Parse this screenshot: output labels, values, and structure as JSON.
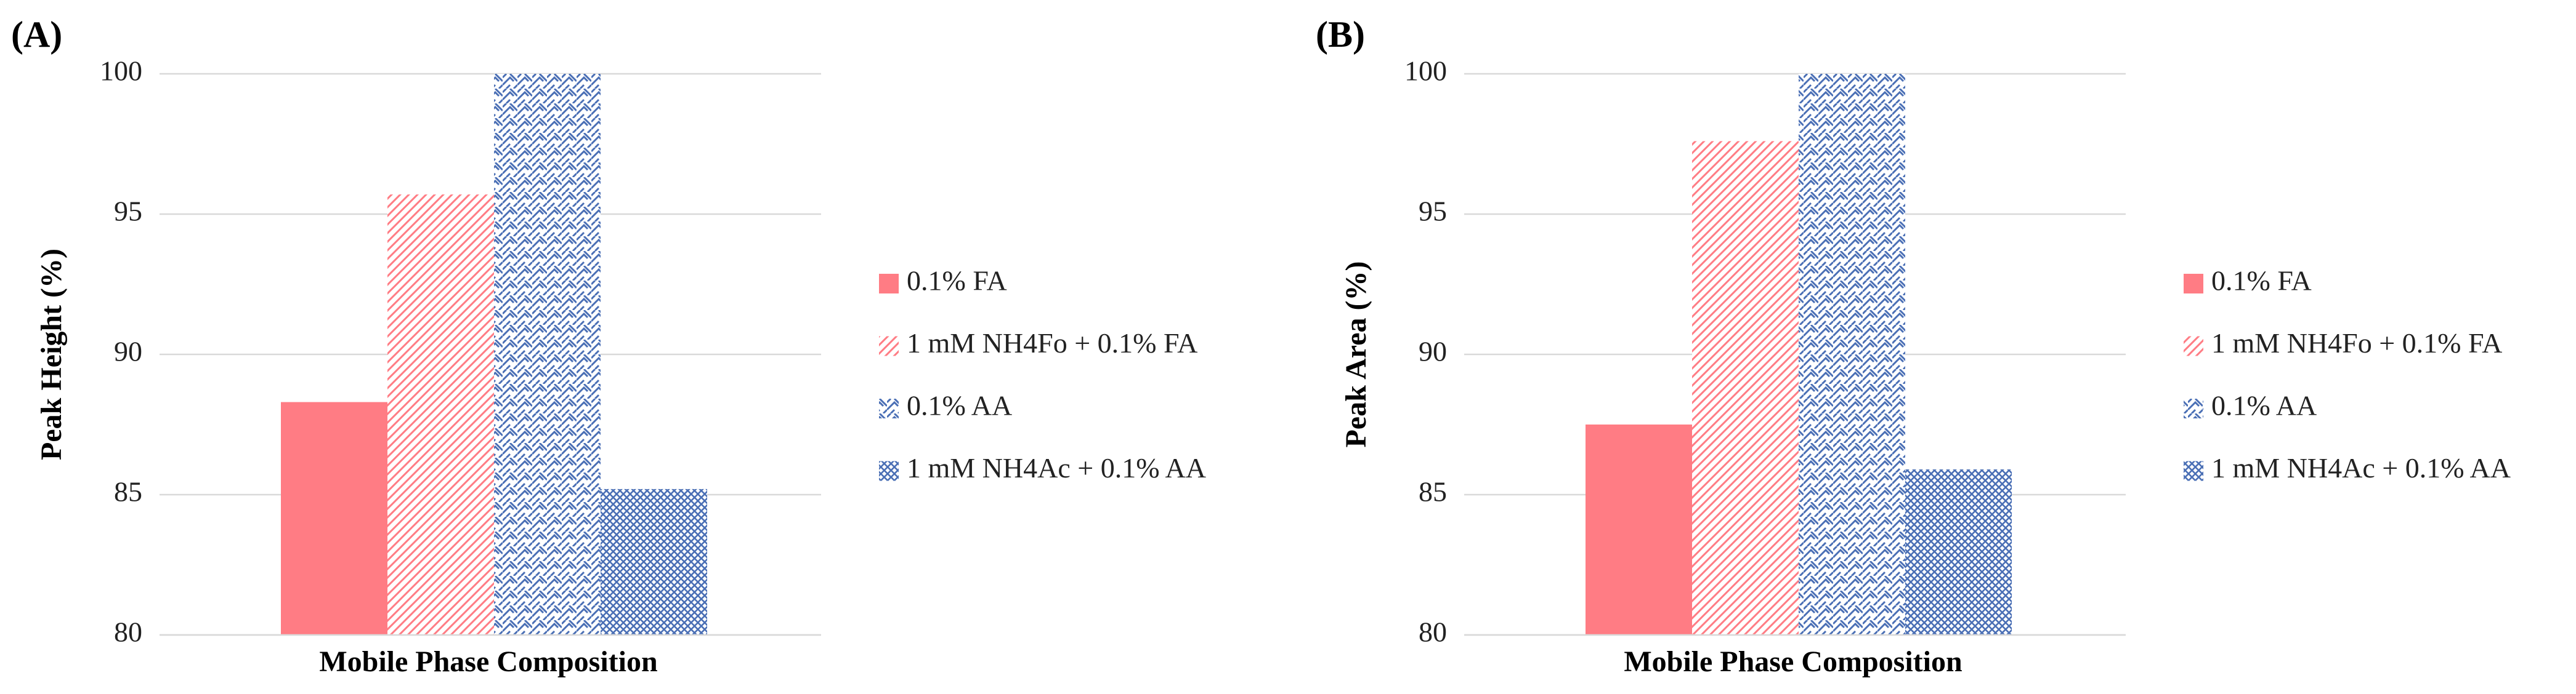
{
  "chart_data": [
    {
      "type": "bar",
      "title": "(A)",
      "ylabel": "Peak Height (%)",
      "xlabel": "Mobile Phase Composition",
      "ylim": [
        80,
        100
      ],
      "yticks": [
        80,
        85,
        90,
        95,
        100
      ],
      "grid": true,
      "legend": "right",
      "series": [
        {
          "name": "0.1% FA",
          "color": "#ff7c84",
          "hatch": "solid",
          "values": [
            88.3
          ]
        },
        {
          "name": "1 mM NH4Fo + 0.1% FA",
          "color": "#ff7c84",
          "hatch": "diagonal",
          "values": [
            95.7
          ]
        },
        {
          "name": "0.1% AA",
          "color": "#4a6fb5",
          "hatch": "weave",
          "values": [
            100
          ]
        },
        {
          "name": "1 mM NH4Ac + 0.1% AA",
          "color": "#4a6fb5",
          "hatch": "grid",
          "values": [
            85.2
          ]
        }
      ]
    },
    {
      "type": "bar",
      "title": "(B)",
      "ylabel": "Peak Area (%)",
      "xlabel": "Mobile Phase Composition",
      "ylim": [
        80,
        100
      ],
      "yticks": [
        80,
        85,
        90,
        95,
        100
      ],
      "grid": true,
      "legend": "right",
      "series": [
        {
          "name": "0.1% FA",
          "color": "#ff7c84",
          "hatch": "solid",
          "values": [
            87.5
          ]
        },
        {
          "name": "1 mM NH4Fo + 0.1% FA",
          "color": "#ff7c84",
          "hatch": "diagonal",
          "values": [
            97.6
          ]
        },
        {
          "name": "0.1% AA",
          "color": "#4a6fb5",
          "hatch": "weave",
          "values": [
            100
          ]
        },
        {
          "name": "1 mM NH4Ac + 0.1% AA",
          "color": "#4a6fb5",
          "hatch": "grid",
          "values": [
            85.9
          ]
        }
      ]
    }
  ]
}
